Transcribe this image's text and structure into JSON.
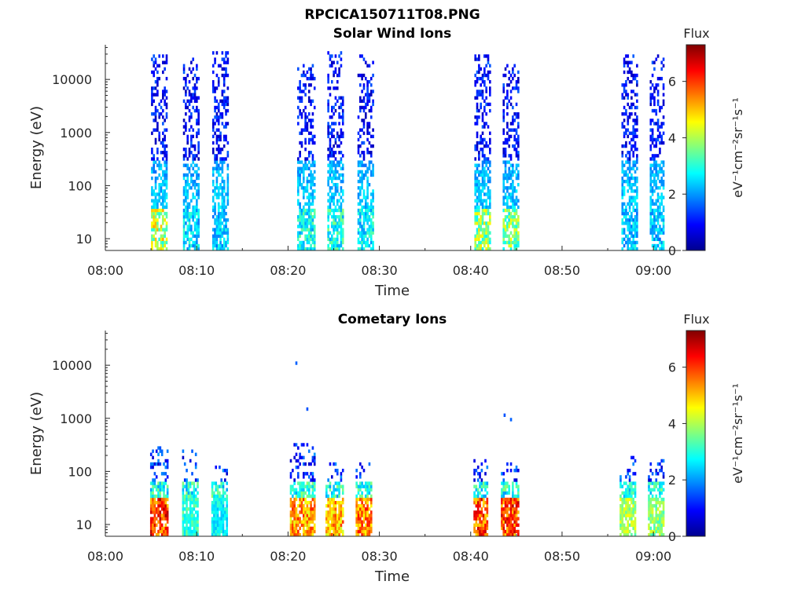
{
  "figure": {
    "title": "RPCICA150711T08.PNG"
  },
  "colors": {
    "colormap": [
      "#00008f",
      "#0000ff",
      "#0080ff",
      "#00ffff",
      "#80ff80",
      "#ffff00",
      "#ff8000",
      "#ff0000",
      "#800000"
    ],
    "axis": "#262626",
    "background": "#ffffff"
  },
  "chart_data": [
    {
      "type": "heatmap",
      "title": "Solar Wind Ions",
      "xlabel": "Time",
      "ylabel": "Energy (eV)",
      "x_ticks": [
        "08:00",
        "08:10",
        "08:20",
        "08:30",
        "08:40",
        "08:50",
        "09:00"
      ],
      "x_tick_minutes": [
        0,
        10,
        20,
        30,
        40,
        50,
        60
      ],
      "xlim_minutes": [
        0,
        63
      ],
      "y_scale": "log",
      "y_ticks": [
        "10",
        "100",
        "1000",
        "10000"
      ],
      "y_tick_values": [
        10,
        100,
        1000,
        10000
      ],
      "ylim": [
        6,
        45000
      ],
      "colorbar": {
        "title": "Flux",
        "label": "eV⁻¹cm⁻²sr⁻¹s⁻¹",
        "ticks": [
          "0",
          "2",
          "4",
          "6"
        ],
        "tick_values": [
          0,
          2,
          4,
          6
        ],
        "range": [
          0,
          7.3
        ]
      },
      "bursts": [
        {
          "start_min": 5.0,
          "end_min": 6.8,
          "emax": 30000,
          "low_peak": 5.2
        },
        {
          "start_min": 8.5,
          "end_min": 10.2,
          "emax": 25000,
          "low_peak": 3.2
        },
        {
          "start_min": 11.7,
          "end_min": 13.4,
          "emax": 35000,
          "low_peak": 3.0
        },
        {
          "start_min": 21.0,
          "end_min": 22.8,
          "emax": 20000,
          "low_peak": 3.6
        },
        {
          "start_min": 24.3,
          "end_min": 26.0,
          "emax": 35000,
          "low_peak": 3.8
        },
        {
          "start_min": 27.6,
          "end_min": 29.2,
          "emax": 30000,
          "low_peak": 3.4
        },
        {
          "start_min": 40.4,
          "end_min": 42.1,
          "emax": 30000,
          "low_peak": 4.8
        },
        {
          "start_min": 43.5,
          "end_min": 45.2,
          "emax": 20000,
          "low_peak": 4.6
        },
        {
          "start_min": 56.5,
          "end_min": 58.2,
          "emax": 30000,
          "low_peak": 3.0
        },
        {
          "start_min": 59.6,
          "end_min": 61.2,
          "emax": 30000,
          "low_peak": 3.0
        }
      ]
    },
    {
      "type": "heatmap",
      "title": "Cometary Ions",
      "xlabel": "Time",
      "ylabel": "Energy (eV)",
      "x_ticks": [
        "08:00",
        "08:10",
        "08:20",
        "08:30",
        "08:40",
        "08:50",
        "09:00"
      ],
      "x_tick_minutes": [
        0,
        10,
        20,
        30,
        40,
        50,
        60
      ],
      "xlim_minutes": [
        0,
        63
      ],
      "y_scale": "log",
      "y_ticks": [
        "10",
        "100",
        "1000",
        "10000"
      ],
      "y_tick_values": [
        10,
        100,
        1000,
        10000
      ],
      "ylim": [
        6,
        45000
      ],
      "colorbar": {
        "title": "Flux",
        "label": "eV⁻¹cm⁻²sr⁻¹s⁻¹",
        "ticks": [
          "0",
          "2",
          "4",
          "6"
        ],
        "tick_values": [
          0,
          2,
          4,
          6
        ],
        "range": [
          0,
          7.3
        ]
      },
      "bursts": [
        {
          "start_min": 4.9,
          "end_min": 6.8,
          "emax": 300,
          "low_peak": 7.0
        },
        {
          "start_min": 8.4,
          "end_min": 10.1,
          "emax": 250,
          "low_peak": 3.6
        },
        {
          "start_min": 11.6,
          "end_min": 13.3,
          "emax": 150,
          "low_peak": 3.2
        },
        {
          "start_min": 20.2,
          "end_min": 22.8,
          "emax": 350,
          "low_peak": 6.2
        },
        {
          "start_min": 24.1,
          "end_min": 26.0,
          "emax": 150,
          "low_peak": 6.0
        },
        {
          "start_min": 27.4,
          "end_min": 29.1,
          "emax": 150,
          "low_peak": 6.4
        },
        {
          "start_min": 40.3,
          "end_min": 41.9,
          "emax": 200,
          "low_peak": 6.8
        },
        {
          "start_min": 43.3,
          "end_min": 45.2,
          "emax": 150,
          "low_peak": 6.9
        },
        {
          "start_min": 56.3,
          "end_min": 58.1,
          "emax": 200,
          "low_peak": 4.6
        },
        {
          "start_min": 59.4,
          "end_min": 61.2,
          "emax": 200,
          "low_peak": 4.4
        }
      ],
      "isolated_points": [
        {
          "min": 20.8,
          "energy": 11000,
          "value": 1.6
        },
        {
          "min": 22.0,
          "energy": 1500,
          "value": 1.5
        },
        {
          "min": 43.6,
          "energy": 1150,
          "value": 1.5
        },
        {
          "min": 44.3,
          "energy": 950,
          "value": 1.6
        }
      ]
    }
  ]
}
